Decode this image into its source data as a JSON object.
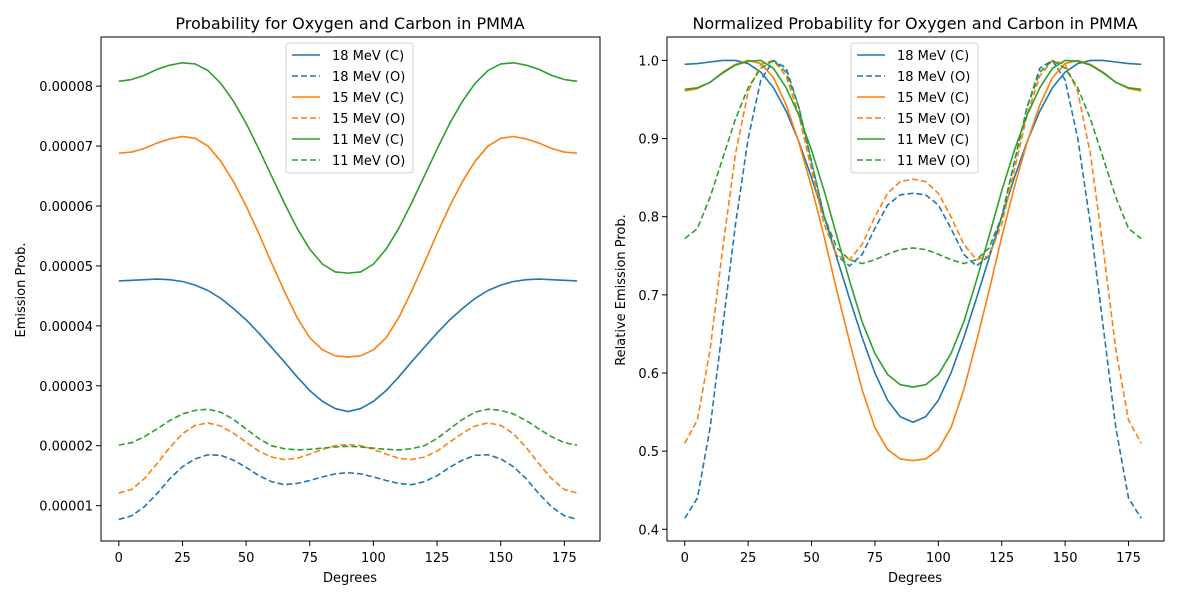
{
  "chart_data": [
    {
      "type": "line",
      "title": "Probability for Oxygen and Carbon in PMMA",
      "xlabel": "Degrees",
      "ylabel": "Emission Prob.",
      "xlim": [
        -7,
        189
      ],
      "ylim": [
        4.1e-06,
        8.82e-05
      ],
      "xticks": [
        0,
        25,
        50,
        75,
        100,
        125,
        150,
        175
      ],
      "xtick_labels": [
        "0",
        "25",
        "50",
        "75",
        "100",
        "125",
        "150",
        "175"
      ],
      "yticks": [
        1e-05,
        2e-05,
        3e-05,
        4e-05,
        5e-05,
        6e-05,
        7e-05,
        8e-05
      ],
      "ytick_labels": [
        "0.00001",
        "0.00002",
        "0.00003",
        "0.00004",
        "0.00005",
        "0.00006",
        "0.00007",
        "0.00008"
      ],
      "grid": false,
      "legend_position": "top-center",
      "x": [
        0,
        5,
        10,
        15,
        20,
        25,
        30,
        35,
        40,
        45,
        50,
        55,
        60,
        65,
        70,
        75,
        80,
        85,
        90,
        95,
        100,
        105,
        110,
        115,
        120,
        125,
        130,
        135,
        140,
        145,
        150,
        155,
        160,
        165,
        170,
        175,
        180
      ],
      "series": [
        {
          "name": "18 MeV (C)",
          "color": "#1f77b4",
          "dash": "solid",
          "values": [
            4.75e-05,
            4.76e-05,
            4.77e-05,
            4.78e-05,
            4.77e-05,
            4.74e-05,
            4.68e-05,
            4.59e-05,
            4.46e-05,
            4.29e-05,
            4.1e-05,
            3.88e-05,
            3.64e-05,
            3.4e-05,
            3.15e-05,
            2.92e-05,
            2.74e-05,
            2.62e-05,
            2.57e-05,
            2.62e-05,
            2.74e-05,
            2.92e-05,
            3.15e-05,
            3.4e-05,
            3.64e-05,
            3.88e-05,
            4.1e-05,
            4.29e-05,
            4.46e-05,
            4.59e-05,
            4.68e-05,
            4.74e-05,
            4.77e-05,
            4.78e-05,
            4.77e-05,
            4.76e-05,
            4.75e-05
          ]
        },
        {
          "name": "18 MeV (O)",
          "color": "#1f77b4",
          "dash": "dashed",
          "values": [
            7.7e-06,
            8.3e-06,
            9.8e-06,
            1.2e-05,
            1.45e-05,
            1.65e-05,
            1.78e-05,
            1.85e-05,
            1.84e-05,
            1.76e-05,
            1.64e-05,
            1.5e-05,
            1.4e-05,
            1.35e-05,
            1.37e-05,
            1.42e-05,
            1.48e-05,
            1.53e-05,
            1.55e-05,
            1.53e-05,
            1.48e-05,
            1.42e-05,
            1.37e-05,
            1.35e-05,
            1.4e-05,
            1.5e-05,
            1.64e-05,
            1.76e-05,
            1.84e-05,
            1.85e-05,
            1.78e-05,
            1.65e-05,
            1.45e-05,
            1.2e-05,
            9.8e-06,
            8.3e-06,
            7.7e-06
          ]
        },
        {
          "name": "15 MeV (C)",
          "color": "#ff7f0e",
          "dash": "solid",
          "values": [
            6.88e-05,
            6.9e-05,
            6.96e-05,
            7.05e-05,
            7.12e-05,
            7.16e-05,
            7.13e-05,
            7e-05,
            6.75e-05,
            6.41e-05,
            6e-05,
            5.54e-05,
            5.05e-05,
            4.58e-05,
            4.14e-05,
            3.8e-05,
            3.6e-05,
            3.5e-05,
            3.48e-05,
            3.5e-05,
            3.6e-05,
            3.8e-05,
            4.14e-05,
            4.58e-05,
            5.05e-05,
            5.54e-05,
            6e-05,
            6.41e-05,
            6.75e-05,
            7e-05,
            7.13e-05,
            7.16e-05,
            7.12e-05,
            7.05e-05,
            6.96e-05,
            6.9e-05,
            6.88e-05
          ]
        },
        {
          "name": "15 MeV (O)",
          "color": "#ff7f0e",
          "dash": "dashed",
          "values": [
            1.21e-05,
            1.27e-05,
            1.45e-05,
            1.7e-05,
            1.97e-05,
            2.2e-05,
            2.34e-05,
            2.38e-05,
            2.33e-05,
            2.21e-05,
            2.06e-05,
            1.91e-05,
            1.81e-05,
            1.77e-05,
            1.79e-05,
            1.86e-05,
            1.94e-05,
            2e-05,
            2.02e-05,
            2e-05,
            1.94e-05,
            1.86e-05,
            1.79e-05,
            1.77e-05,
            1.81e-05,
            1.91e-05,
            2.06e-05,
            2.21e-05,
            2.33e-05,
            2.38e-05,
            2.34e-05,
            2.2e-05,
            1.97e-05,
            1.7e-05,
            1.45e-05,
            1.27e-05,
            1.21e-05
          ]
        },
        {
          "name": "11 MeV (C)",
          "color": "#2ca02c",
          "dash": "solid",
          "values": [
            8.08e-05,
            8.11e-05,
            8.18e-05,
            8.28e-05,
            8.35e-05,
            8.39e-05,
            8.37e-05,
            8.26e-05,
            8.05e-05,
            7.75e-05,
            7.38e-05,
            6.95e-05,
            6.5e-05,
            6.05e-05,
            5.63e-05,
            5.28e-05,
            5.03e-05,
            4.9e-05,
            4.88e-05,
            4.9e-05,
            5.03e-05,
            5.28e-05,
            5.63e-05,
            6.05e-05,
            6.5e-05,
            6.95e-05,
            7.38e-05,
            7.75e-05,
            8.05e-05,
            8.26e-05,
            8.37e-05,
            8.39e-05,
            8.35e-05,
            8.28e-05,
            8.18e-05,
            8.11e-05,
            8.08e-05
          ]
        },
        {
          "name": "11 MeV (O)",
          "color": "#2ca02c",
          "dash": "dashed",
          "values": [
            2.01e-05,
            2.05e-05,
            2.15e-05,
            2.28e-05,
            2.42e-05,
            2.53e-05,
            2.59e-05,
            2.61e-05,
            2.56e-05,
            2.44e-05,
            2.28e-05,
            2.12e-05,
            2e-05,
            1.95e-05,
            1.93e-05,
            1.94e-05,
            1.96e-05,
            1.98e-05,
            1.99e-05,
            1.98e-05,
            1.96e-05,
            1.94e-05,
            1.93e-05,
            1.95e-05,
            2e-05,
            2.12e-05,
            2.28e-05,
            2.44e-05,
            2.56e-05,
            2.61e-05,
            2.59e-05,
            2.53e-05,
            2.42e-05,
            2.28e-05,
            2.15e-05,
            2.05e-05,
            2.01e-05
          ]
        }
      ]
    },
    {
      "type": "line",
      "title": "Normalized Probability for Oxygen and Carbon in PMMA",
      "xlabel": "Degrees",
      "ylabel": "Relative Emission Prob.",
      "xlim": [
        -7,
        189
      ],
      "ylim": [
        0.385,
        1.03
      ],
      "xticks": [
        0,
        25,
        50,
        75,
        100,
        125,
        150,
        175
      ],
      "xtick_labels": [
        "0",
        "25",
        "50",
        "75",
        "100",
        "125",
        "150",
        "175"
      ],
      "yticks": [
        0.4,
        0.5,
        0.6,
        0.7,
        0.8,
        0.9,
        1.0
      ],
      "ytick_labels": [
        "0.4",
        "0.5",
        "0.6",
        "0.7",
        "0.8",
        "0.9",
        "1.0"
      ],
      "grid": false,
      "legend_position": "top-center",
      "x": [
        0,
        5,
        10,
        15,
        20,
        25,
        30,
        35,
        40,
        45,
        50,
        55,
        60,
        65,
        70,
        75,
        80,
        85,
        90,
        95,
        100,
        105,
        110,
        115,
        120,
        125,
        130,
        135,
        140,
        145,
        150,
        155,
        160,
        165,
        170,
        175,
        180
      ],
      "series": [
        {
          "name": "18 MeV (C)",
          "color": "#1f77b4",
          "dash": "solid",
          "values": [
            0.995,
            0.996,
            0.998,
            1.0,
            1.0,
            0.996,
            0.985,
            0.965,
            0.935,
            0.896,
            0.85,
            0.8,
            0.747,
            0.695,
            0.645,
            0.6,
            0.565,
            0.544,
            0.537,
            0.544,
            0.565,
            0.6,
            0.645,
            0.695,
            0.747,
            0.8,
            0.85,
            0.896,
            0.935,
            0.965,
            0.985,
            0.996,
            1.0,
            1.0,
            0.998,
            0.996,
            0.995
          ]
        },
        {
          "name": "18 MeV (O)",
          "color": "#1f77b4",
          "dash": "dashed",
          "values": [
            0.414,
            0.44,
            0.53,
            0.66,
            0.79,
            0.9,
            0.975,
            1.0,
            0.99,
            0.94,
            0.87,
            0.8,
            0.75,
            0.737,
            0.752,
            0.785,
            0.815,
            0.828,
            0.83,
            0.828,
            0.815,
            0.785,
            0.752,
            0.737,
            0.75,
            0.8,
            0.87,
            0.94,
            0.99,
            1.0,
            0.975,
            0.9,
            0.79,
            0.66,
            0.53,
            0.44,
            0.414
          ]
        },
        {
          "name": "15 MeV (C)",
          "color": "#ff7f0e",
          "dash": "solid",
          "values": [
            0.961,
            0.964,
            0.972,
            0.985,
            0.995,
            1.0,
            0.996,
            0.978,
            0.943,
            0.895,
            0.838,
            0.774,
            0.705,
            0.64,
            0.578,
            0.53,
            0.502,
            0.49,
            0.488,
            0.49,
            0.502,
            0.53,
            0.578,
            0.64,
            0.705,
            0.774,
            0.838,
            0.895,
            0.943,
            0.978,
            0.996,
            1.0,
            0.995,
            0.985,
            0.972,
            0.964,
            0.961
          ]
        },
        {
          "name": "15 MeV (O)",
          "color": "#ff7f0e",
          "dash": "dashed",
          "values": [
            0.51,
            0.54,
            0.63,
            0.76,
            0.88,
            0.96,
            0.995,
            1.0,
            0.98,
            0.93,
            0.86,
            0.79,
            0.75,
            0.745,
            0.765,
            0.8,
            0.83,
            0.845,
            0.848,
            0.845,
            0.83,
            0.8,
            0.765,
            0.745,
            0.75,
            0.79,
            0.86,
            0.93,
            0.98,
            1.0,
            0.995,
            0.96,
            0.88,
            0.76,
            0.63,
            0.54,
            0.51
          ]
        },
        {
          "name": "11 MeV (C)",
          "color": "#2ca02c",
          "dash": "solid",
          "values": [
            0.963,
            0.965,
            0.972,
            0.984,
            0.994,
            0.999,
            1.0,
            0.99,
            0.965,
            0.93,
            0.885,
            0.833,
            0.775,
            0.718,
            0.665,
            0.625,
            0.598,
            0.585,
            0.582,
            0.585,
            0.598,
            0.625,
            0.665,
            0.718,
            0.775,
            0.833,
            0.885,
            0.93,
            0.965,
            0.99,
            1.0,
            0.999,
            0.994,
            0.984,
            0.972,
            0.965,
            0.963
          ]
        },
        {
          "name": "11 MeV (O)",
          "color": "#2ca02c",
          "dash": "dashed",
          "values": [
            0.772,
            0.785,
            0.825,
            0.875,
            0.925,
            0.965,
            0.99,
            1.0,
            0.985,
            0.94,
            0.87,
            0.8,
            0.76,
            0.745,
            0.74,
            0.745,
            0.752,
            0.758,
            0.76,
            0.758,
            0.752,
            0.745,
            0.74,
            0.745,
            0.76,
            0.8,
            0.87,
            0.94,
            0.985,
            1.0,
            0.99,
            0.965,
            0.925,
            0.875,
            0.825,
            0.785,
            0.772
          ]
        }
      ]
    }
  ]
}
